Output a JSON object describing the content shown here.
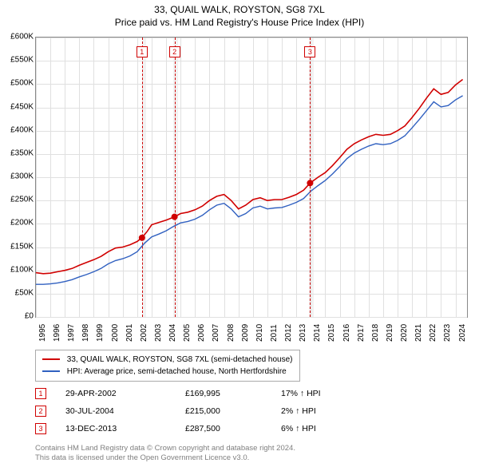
{
  "title": {
    "line1": "33, QUAIL WALK, ROYSTON, SG8 7XL",
    "line2": "Price paid vs. HM Land Registry's House Price Index (HPI)",
    "fontsize": 12
  },
  "chart": {
    "type": "line",
    "x_min": 1995,
    "x_max": 2024.8,
    "y_min": 0,
    "y_max": 600000,
    "y_prefix": "£",
    "y_suffix": "K",
    "y_ticks": [
      0,
      50000,
      100000,
      150000,
      200000,
      250000,
      300000,
      350000,
      400000,
      450000,
      500000,
      550000,
      600000
    ],
    "y_tick_labels": [
      "£0",
      "£50K",
      "£100K",
      "£150K",
      "£200K",
      "£250K",
      "£300K",
      "£350K",
      "£400K",
      "£450K",
      "£500K",
      "£550K",
      "£600K"
    ],
    "x_ticks": [
      1995,
      1996,
      1997,
      1998,
      1999,
      2000,
      2001,
      2002,
      2003,
      2004,
      2005,
      2006,
      2007,
      2008,
      2009,
      2010,
      2011,
      2012,
      2013,
      2014,
      2015,
      2016,
      2017,
      2018,
      2019,
      2020,
      2021,
      2022,
      2023,
      2024
    ],
    "grid_color": "#e0e0e0",
    "border_color": "#888888",
    "background": "#ffffff",
    "bands": [
      {
        "from": 2002.33,
        "to": 2002.6,
        "color": "#e6e6e6"
      },
      {
        "from": 2004.5,
        "to": 2004.8,
        "color": "#e6e6e6"
      },
      {
        "from": 2013.9,
        "to": 2014.2,
        "color": "#e6e6e6"
      }
    ],
    "event_lines": [
      {
        "x": 2002.33,
        "label": "1"
      },
      {
        "x": 2004.58,
        "label": "2"
      },
      {
        "x": 2013.95,
        "label": "3"
      }
    ],
    "markers": [
      {
        "x": 2002.33,
        "y": 169995
      },
      {
        "x": 2004.58,
        "y": 215000
      },
      {
        "x": 2013.95,
        "y": 287500
      }
    ],
    "series": [
      {
        "name": "33, QUAIL WALK, ROYSTON, SG8 7XL (semi-detached house)",
        "color": "#d00000",
        "width": 1.6,
        "data": [
          [
            1995,
            95000
          ],
          [
            1995.5,
            93000
          ],
          [
            1996,
            94000
          ],
          [
            1996.5,
            97000
          ],
          [
            1997,
            100000
          ],
          [
            1997.5,
            104000
          ],
          [
            1998,
            111000
          ],
          [
            1998.5,
            117000
          ],
          [
            1999,
            123000
          ],
          [
            1999.5,
            130000
          ],
          [
            2000,
            140000
          ],
          [
            2000.5,
            148000
          ],
          [
            2001,
            150000
          ],
          [
            2001.5,
            155000
          ],
          [
            2002,
            162000
          ],
          [
            2002.33,
            169995
          ],
          [
            2002.7,
            184000
          ],
          [
            2003,
            198000
          ],
          [
            2003.5,
            203000
          ],
          [
            2004,
            208000
          ],
          [
            2004.58,
            215000
          ],
          [
            2005,
            222000
          ],
          [
            2005.5,
            225000
          ],
          [
            2006,
            230000
          ],
          [
            2006.5,
            238000
          ],
          [
            2007,
            250000
          ],
          [
            2007.5,
            259000
          ],
          [
            2008,
            263000
          ],
          [
            2008.5,
            250000
          ],
          [
            2009,
            232000
          ],
          [
            2009.5,
            240000
          ],
          [
            2010,
            252000
          ],
          [
            2010.5,
            256000
          ],
          [
            2011,
            250000
          ],
          [
            2011.5,
            252000
          ],
          [
            2012,
            252000
          ],
          [
            2012.5,
            257000
          ],
          [
            2013,
            263000
          ],
          [
            2013.5,
            272000
          ],
          [
            2013.95,
            287500
          ],
          [
            2014.5,
            300000
          ],
          [
            2015,
            310000
          ],
          [
            2015.5,
            325000
          ],
          [
            2016,
            342000
          ],
          [
            2016.5,
            360000
          ],
          [
            2017,
            372000
          ],
          [
            2017.5,
            380000
          ],
          [
            2018,
            387000
          ],
          [
            2018.5,
            392000
          ],
          [
            2019,
            390000
          ],
          [
            2019.5,
            392000
          ],
          [
            2020,
            400000
          ],
          [
            2020.5,
            410000
          ],
          [
            2021,
            428000
          ],
          [
            2021.5,
            448000
          ],
          [
            2022,
            470000
          ],
          [
            2022.5,
            490000
          ],
          [
            2023,
            478000
          ],
          [
            2023.5,
            482000
          ],
          [
            2024,
            498000
          ],
          [
            2024.5,
            510000
          ]
        ]
      },
      {
        "name": "HPI: Average price, semi-detached house, North Hertfordshire",
        "color": "#3060c0",
        "width": 1.4,
        "data": [
          [
            1995,
            70000
          ],
          [
            1995.5,
            70000
          ],
          [
            1996,
            71000
          ],
          [
            1996.5,
            73000
          ],
          [
            1997,
            76000
          ],
          [
            1997.5,
            80000
          ],
          [
            1998,
            86000
          ],
          [
            1998.5,
            91000
          ],
          [
            1999,
            97000
          ],
          [
            1999.5,
            104000
          ],
          [
            2000,
            114000
          ],
          [
            2000.5,
            121000
          ],
          [
            2001,
            125000
          ],
          [
            2001.5,
            131000
          ],
          [
            2002,
            140000
          ],
          [
            2002.5,
            158000
          ],
          [
            2003,
            172000
          ],
          [
            2003.5,
            178000
          ],
          [
            2004,
            185000
          ],
          [
            2004.5,
            194000
          ],
          [
            2005,
            202000
          ],
          [
            2005.5,
            205000
          ],
          [
            2006,
            210000
          ],
          [
            2006.5,
            218000
          ],
          [
            2007,
            230000
          ],
          [
            2007.5,
            240000
          ],
          [
            2008,
            244000
          ],
          [
            2008.5,
            232000
          ],
          [
            2009,
            215000
          ],
          [
            2009.5,
            222000
          ],
          [
            2010,
            234000
          ],
          [
            2010.5,
            238000
          ],
          [
            2011,
            232000
          ],
          [
            2011.5,
            234000
          ],
          [
            2012,
            235000
          ],
          [
            2012.5,
            240000
          ],
          [
            2013,
            246000
          ],
          [
            2013.5,
            254000
          ],
          [
            2014,
            270000
          ],
          [
            2014.5,
            282000
          ],
          [
            2015,
            293000
          ],
          [
            2015.5,
            307000
          ],
          [
            2016,
            323000
          ],
          [
            2016.5,
            340000
          ],
          [
            2017,
            352000
          ],
          [
            2017.5,
            360000
          ],
          [
            2018,
            367000
          ],
          [
            2018.5,
            372000
          ],
          [
            2019,
            370000
          ],
          [
            2019.5,
            372000
          ],
          [
            2020,
            379000
          ],
          [
            2020.5,
            389000
          ],
          [
            2021,
            406000
          ],
          [
            2021.5,
            424000
          ],
          [
            2022,
            443000
          ],
          [
            2022.5,
            462000
          ],
          [
            2023,
            451000
          ],
          [
            2023.5,
            454000
          ],
          [
            2024,
            466000
          ],
          [
            2024.5,
            475000
          ]
        ]
      }
    ]
  },
  "legend": {
    "items": [
      {
        "color": "#d00000",
        "label": "33, QUAIL WALK, ROYSTON, SG8 7XL (semi-detached house)"
      },
      {
        "color": "#3060c0",
        "label": "HPI: Average price, semi-detached house, North Hertfordshire"
      }
    ]
  },
  "sales": [
    {
      "num": "1",
      "date": "29-APR-2002",
      "price": "£169,995",
      "pct": "17% ↑ HPI"
    },
    {
      "num": "2",
      "date": "30-JUL-2004",
      "price": "£215,000",
      "pct": "2% ↑ HPI"
    },
    {
      "num": "3",
      "date": "13-DEC-2013",
      "price": "£287,500",
      "pct": "6% ↑ HPI"
    }
  ],
  "attribution": {
    "line1": "Contains HM Land Registry data © Crown copyright and database right 2024.",
    "line2": "This data is licensed under the Open Government Licence v3.0."
  }
}
